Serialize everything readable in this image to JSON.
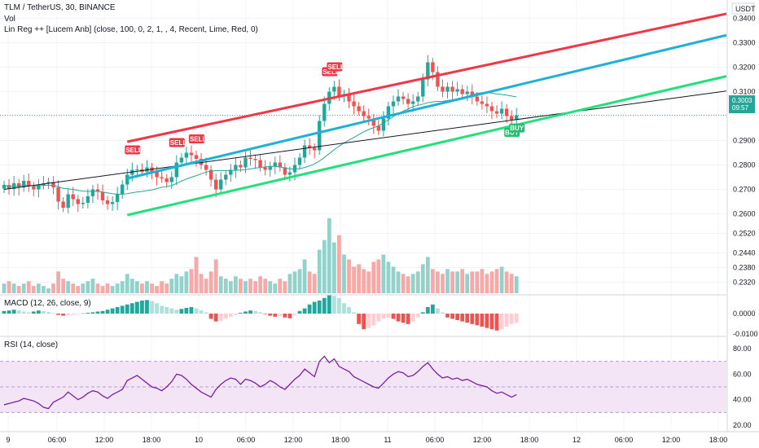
{
  "header": {
    "title": "TLM / TetherUS, 30, BINANCE",
    "vol_label": "Vol",
    "linreg_label": "Lin Reg ++ [Lucem Anb] (close, 100, 0, 2, 1, , 4, Recent, Lime, Red, 0)",
    "macd_label": "MACD (12, 26, close, 9)",
    "rsi_label": "RSI (14, close)"
  },
  "price_axis": {
    "currency": "USDT",
    "last_price": "0.3003",
    "countdown": "09:57"
  },
  "colors": {
    "up": "#26a69a",
    "down": "#ef5350",
    "upper_band": "#f23645",
    "mid_line": "#1fb0d8",
    "lower_band": "#22e07a",
    "sell": "#f23645",
    "buy": "#22c070",
    "rsi": "#7b1fa2",
    "rsi_band": "#f3e5f5"
  },
  "chart_data": [
    {
      "type": "candlestick",
      "title": "TLM / TetherUS, 30, BINANCE",
      "ylim": [
        0.2275,
        0.3475
      ],
      "y_ticks": [
        "0.3400",
        "0.3300",
        "0.3200",
        "0.3100",
        "0.2900",
        "0.2800",
        "0.2700",
        "0.2600",
        "0.2520",
        "0.2440",
        "0.2380",
        "0.2320"
      ],
      "x_ticks": [
        "9",
        "06:00",
        "12:00",
        "18:00",
        "10",
        "06:00",
        "12:00",
        "18:00",
        "11",
        "06:00",
        "12:00",
        "18:00",
        "12",
        "06:00",
        "12:00",
        "18:00"
      ],
      "closes": [
        0.2718,
        0.2702,
        0.2725,
        0.2708,
        0.2735,
        0.2712,
        0.27,
        0.2718,
        0.2725,
        0.273,
        0.2708,
        0.265,
        0.2625,
        0.268,
        0.266,
        0.264,
        0.2645,
        0.2672,
        0.27,
        0.269,
        0.2655,
        0.264,
        0.2648,
        0.268,
        0.272,
        0.276,
        0.278,
        0.2782,
        0.2772,
        0.279,
        0.277,
        0.275,
        0.2745,
        0.273,
        0.275,
        0.281,
        0.283,
        0.285,
        0.284,
        0.2825,
        0.28,
        0.278,
        0.274,
        0.27,
        0.274,
        0.276,
        0.278,
        0.28,
        0.279,
        0.283,
        0.2825,
        0.282,
        0.279,
        0.278,
        0.2795,
        0.281,
        0.279,
        0.276,
        0.277,
        0.28,
        0.283,
        0.288,
        0.287,
        0.286,
        0.298,
        0.305,
        0.31,
        0.312,
        0.308,
        0.309,
        0.306,
        0.304,
        0.302,
        0.3,
        0.299,
        0.296,
        0.294,
        0.299,
        0.304,
        0.306,
        0.308,
        0.307,
        0.305,
        0.306,
        0.308,
        0.315,
        0.322,
        0.318,
        0.312,
        0.31,
        0.312,
        0.31,
        0.311,
        0.309,
        0.31,
        0.308,
        0.306,
        0.305,
        0.304,
        0.302,
        0.301,
        0.303,
        0.3,
        0.2985,
        0.3003
      ],
      "volume": [
        4,
        5,
        4,
        3,
        4,
        5,
        3,
        4,
        3,
        2,
        4,
        9,
        6,
        5,
        4,
        3,
        4,
        5,
        6,
        4,
        3,
        4,
        3,
        4,
        5,
        8,
        6,
        5,
        4,
        5,
        4,
        3,
        5,
        4,
        6,
        8,
        7,
        9,
        10,
        15,
        8,
        6,
        9,
        14,
        7,
        6,
        5,
        7,
        6,
        5,
        6,
        5,
        7,
        6,
        5,
        4,
        6,
        5,
        8,
        9,
        10,
        14,
        9,
        8,
        18,
        22,
        31,
        21,
        24,
        16,
        14,
        11,
        12,
        10,
        9,
        13,
        14,
        16,
        13,
        11,
        9,
        8,
        7,
        8,
        9,
        12,
        15,
        10,
        9,
        8,
        10,
        9,
        9,
        10,
        8,
        9,
        9,
        10,
        8,
        9,
        10,
        11,
        9,
        8,
        7
      ],
      "macd_hist": [
        0.0005,
        0.0005,
        0.0005,
        0.0005,
        0.0005,
        0.0005,
        0.0005,
        0.0005,
        0.0005,
        0.0005,
        0.0005,
        0.0005,
        0.0005,
        0.0005,
        0.0005,
        0.0005,
        0.0005,
        0.0005,
        0.0005,
        0.0005,
        0.0005,
        0.0005,
        0.0005,
        0.0005,
        0.0005,
        0.0005,
        0.0005,
        0.0005,
        0.0005,
        0.0005,
        0.0005,
        0.0005,
        0.0005,
        0.0005,
        0.0005,
        0.0005,
        0.0005,
        0.0005,
        0.0005,
        0.0005,
        0.0005,
        0.0005,
        0.0005,
        0.0005,
        0.0005,
        0.0005,
        0.0005,
        0.0005,
        0.0005,
        0.0005,
        0.0005,
        0.0005,
        0.0005,
        0.0005,
        0.0005,
        0.0005,
        0.0005,
        0.0005,
        0.0005,
        0.0005,
        0.0005,
        0.0005,
        0.0005,
        0.0005,
        0.0005,
        0.0005,
        0.0005,
        0.0005,
        0.0005,
        0.0005,
        0.0005,
        0.0005,
        0.0005,
        0.0005,
        0.0005,
        0.0005,
        0.0005,
        0.0005,
        0.0005,
        0.0005,
        0.0005,
        0.0005,
        0.0005,
        0.0005,
        0.0005,
        0.0005,
        0.0005,
        0.0005,
        0.0005,
        0.0005,
        0.0005,
        0.0005,
        0.0005,
        0.0005,
        0.0005,
        0.0005,
        0.0005,
        0.0005,
        0.0005,
        0.0005,
        0.0005,
        0.0005,
        0.0005,
        0.0005,
        0.0005
      ],
      "regression": {
        "upper": {
          "start": [
            25,
            0.2895
          ],
          "end": [
            162,
            0.3485
          ]
        },
        "middle": {
          "start": [
            25,
            0.2745
          ],
          "end": [
            162,
            0.3405
          ]
        },
        "lower": {
          "start": [
            25,
            0.2595
          ],
          "end": [
            162,
            0.3235
          ]
        },
        "long_line": {
          "start": [
            0,
            0.27
          ],
          "end": [
            162,
            0.3145
          ]
        }
      },
      "signals": [
        {
          "label": "SELL",
          "index": 26
        },
        {
          "label": "SELL",
          "index": 35
        },
        {
          "label": "SELL",
          "index": 39
        },
        {
          "label": "SELL",
          "index": 66
        },
        {
          "label": "SELL",
          "index": 67
        },
        {
          "label": "BUY",
          "index": 103
        },
        {
          "label": "BUY",
          "index": 104
        }
      ]
    },
    {
      "type": "bar",
      "title": "MACD (12, 26, close, 9)",
      "y_ticks": [
        "0.0000",
        "-0.0100"
      ],
      "values": [
        0.001,
        0.0012,
        0.0015,
        0.0012,
        0.0008,
        0.0005,
        0.0008,
        0.0012,
        0.001,
        0.0006,
        0.0002,
        -0.0005,
        -0.0008,
        -0.0006,
        -0.0004,
        -0.0002,
        0.0001,
        0.0003,
        0.0005,
        0.0008,
        0.001,
        0.0015,
        0.002,
        0.0025,
        0.003,
        0.0035,
        0.004,
        0.0045,
        0.005,
        0.0052,
        0.0048,
        0.004,
        0.003,
        0.0025,
        0.002,
        0.0015,
        0.0018,
        0.0022,
        0.0025,
        0.002,
        0.0012,
        0.0005,
        -0.002,
        -0.003,
        -0.0028,
        -0.002,
        -0.0012,
        -0.0005,
        0.0003,
        0.0008,
        0.0012,
        0.001,
        0.0005,
        -0.0002,
        -0.0008,
        -0.0012,
        -0.001,
        -0.0015,
        -0.0018,
        -0.0005,
        0.001,
        0.002,
        0.0035,
        0.0045,
        0.005,
        0.006,
        0.007,
        0.0068,
        0.006,
        0.004,
        0.0025,
        0.0005,
        -0.004,
        -0.006,
        -0.0055,
        -0.0045,
        -0.003,
        -0.002,
        -0.0015,
        -0.002,
        -0.003,
        -0.0035,
        -0.004,
        -0.003,
        -0.0015,
        0.0005,
        0.0025,
        0.0035,
        0.002,
        0.0005,
        -0.0015,
        -0.002,
        -0.0025,
        -0.003,
        -0.0035,
        -0.004,
        -0.0045,
        -0.005,
        -0.0055,
        -0.006,
        -0.0065,
        -0.006,
        -0.005,
        -0.004,
        -0.0035
      ]
    },
    {
      "type": "line",
      "title": "RSI (14, close)",
      "ylim": [
        20,
        80
      ],
      "y_ticks": [
        "80.00",
        "60.00",
        "40.00",
        "20.00"
      ],
      "bands": [
        30,
        50,
        70
      ],
      "values": [
        36,
        37,
        38,
        39,
        41,
        40,
        39,
        37,
        34,
        33,
        38,
        40,
        42,
        46,
        43,
        40,
        42,
        45,
        47,
        46,
        43,
        41,
        44,
        46,
        48,
        55,
        57,
        59,
        56,
        53,
        50,
        49,
        47,
        50,
        54,
        60,
        59,
        56,
        52,
        49,
        46,
        44,
        42,
        48,
        52,
        55,
        57,
        56,
        52,
        56,
        55,
        53,
        50,
        52,
        55,
        53,
        50,
        48,
        52,
        56,
        59,
        64,
        61,
        58,
        70,
        74,
        69,
        72,
        66,
        64,
        62,
        58,
        56,
        54,
        52,
        50,
        49,
        53,
        57,
        60,
        62,
        61,
        58,
        59,
        62,
        66,
        69,
        64,
        60,
        57,
        58,
        56,
        57,
        55,
        56,
        54,
        52,
        51,
        50,
        47,
        45,
        46,
        44,
        42,
        44
      ]
    }
  ]
}
